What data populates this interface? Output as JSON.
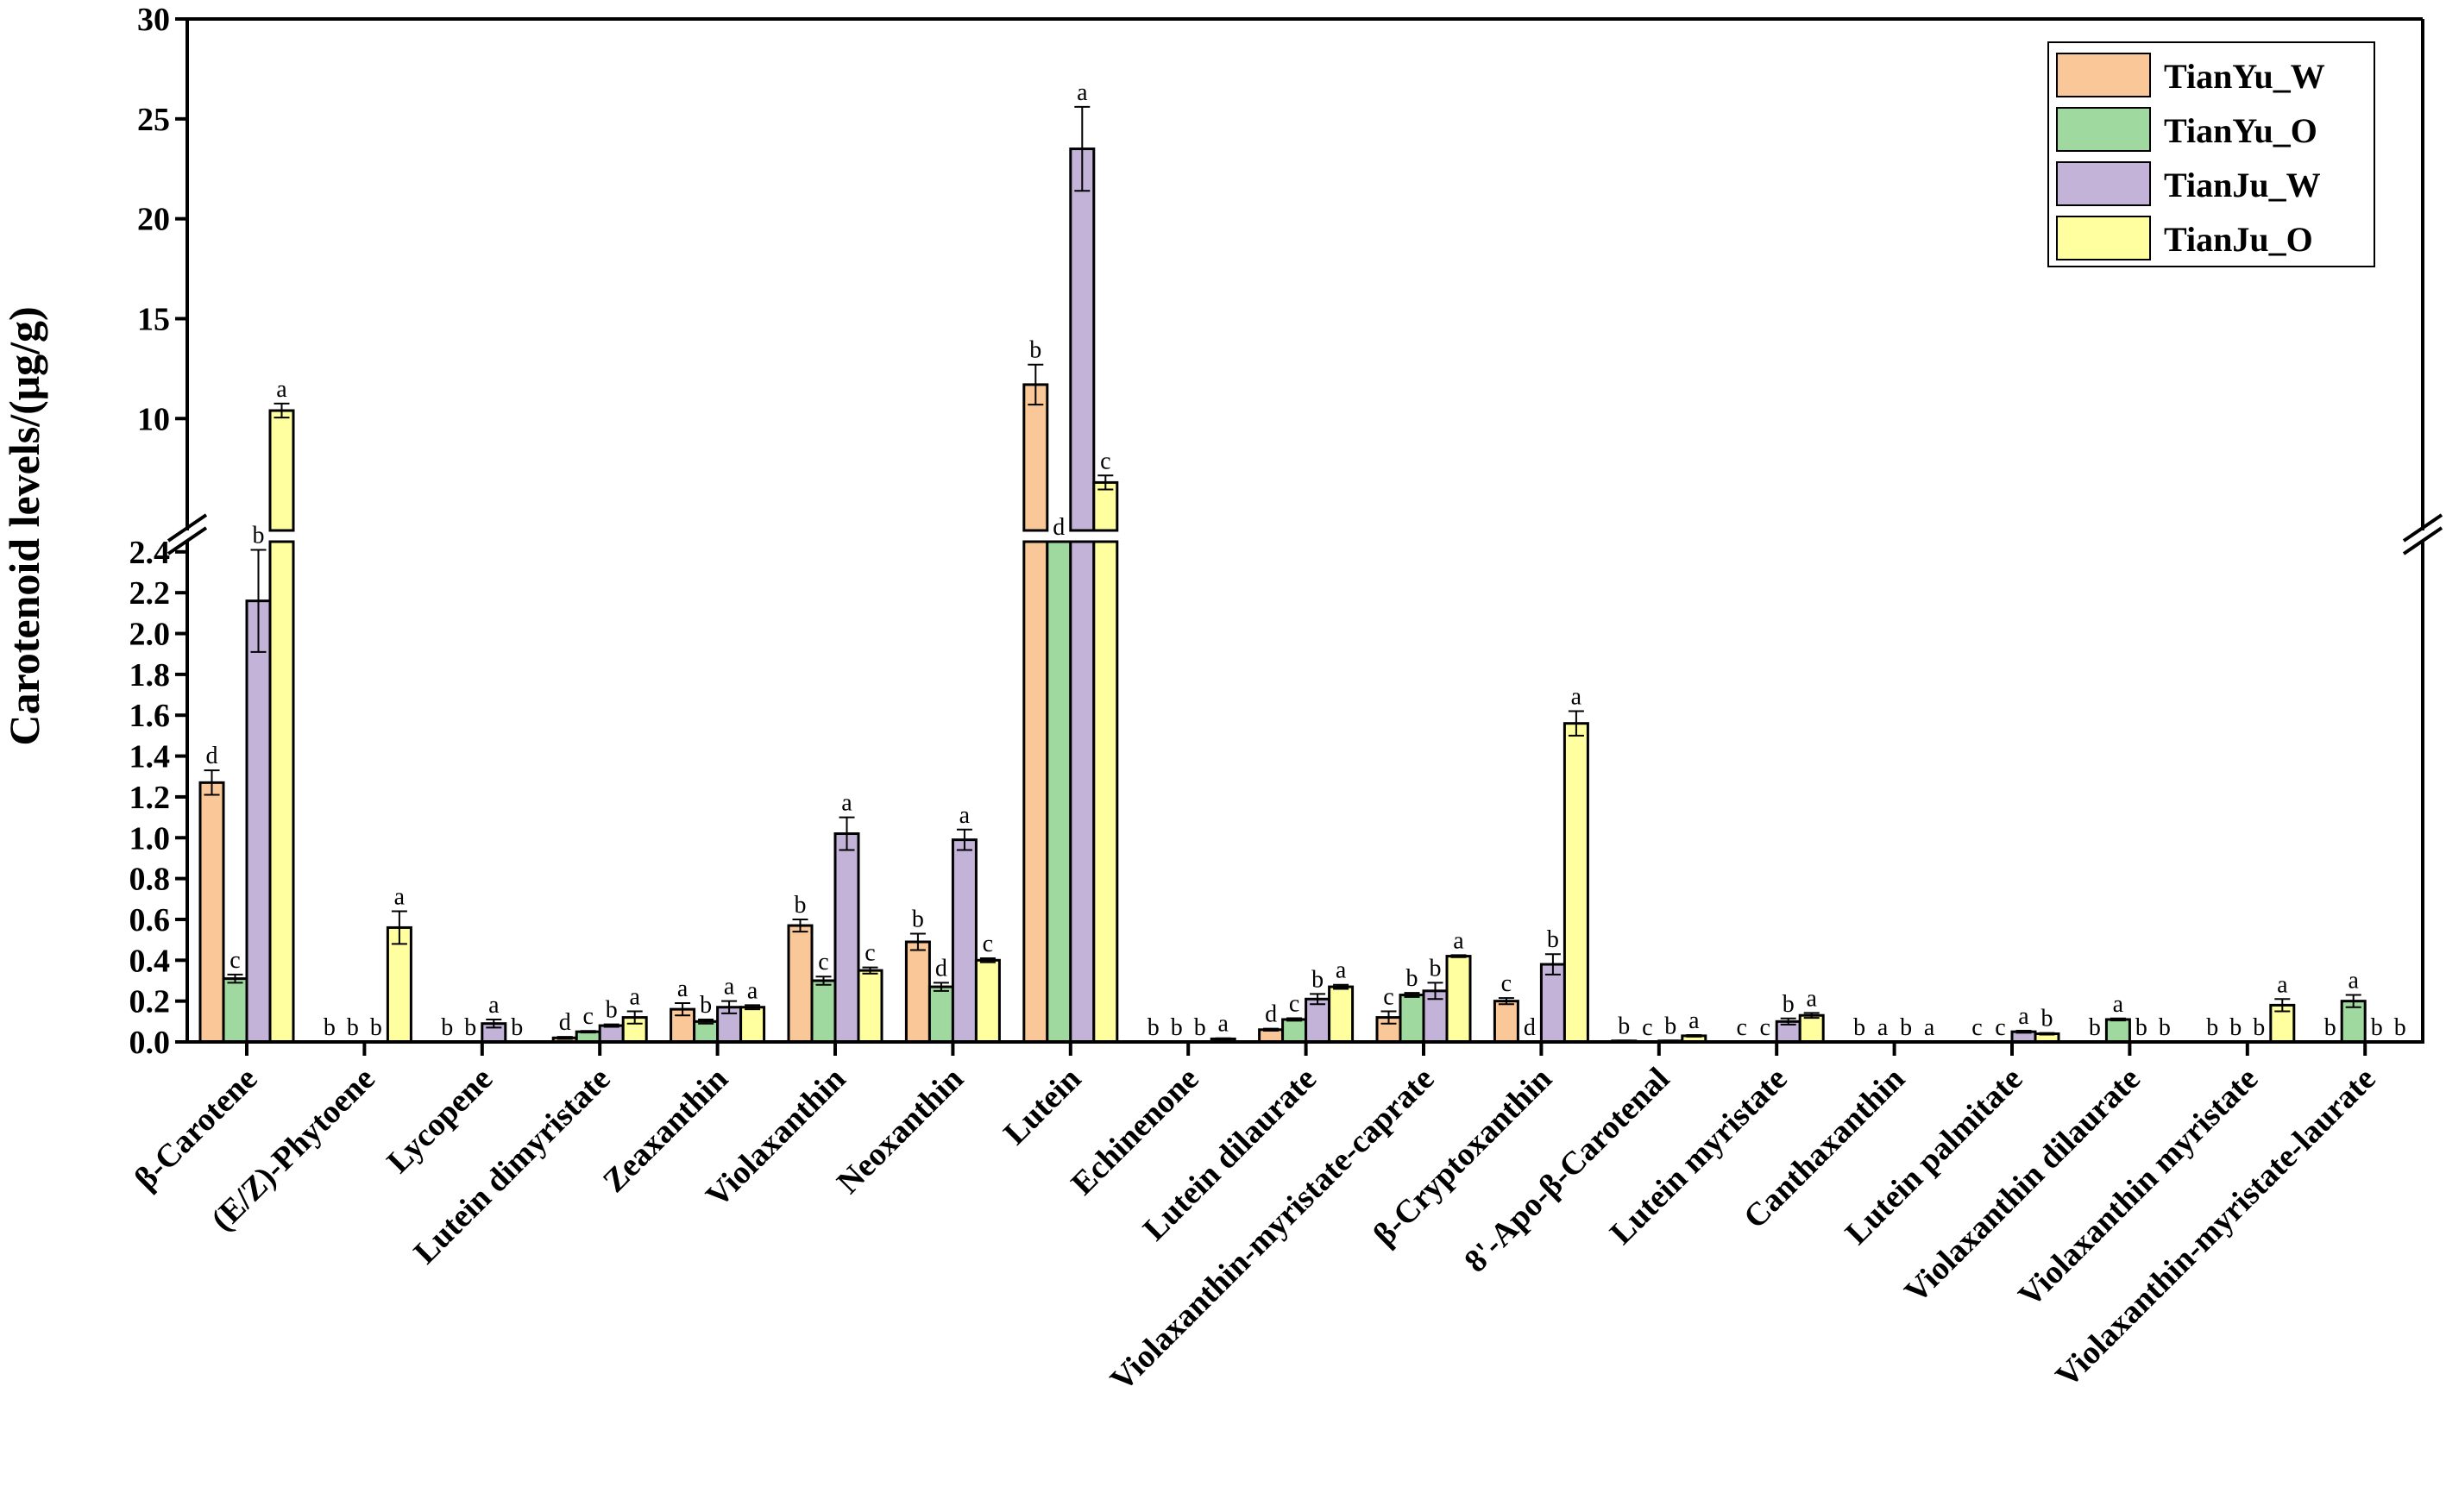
{
  "chart_data": {
    "type": "bar",
    "title": "",
    "xlabel": "",
    "ylabel": "Carotenoid levels/(μg/g)",
    "y_axis_break": {
      "lower_range": [
        0,
        2.45
      ],
      "upper_range": [
        4.4,
        30
      ]
    },
    "lower_ticks": [
      "0.0",
      "0.2",
      "0.4",
      "0.6",
      "0.8",
      "1.0",
      "1.2",
      "1.4",
      "1.6",
      "1.8",
      "2.0",
      "2.2",
      "2.4"
    ],
    "upper_ticks": [
      "10",
      "15",
      "20",
      "25",
      "30"
    ],
    "legend_position": "top-right",
    "categories": [
      "β-Carotene",
      "(E/Z)-Phytoene",
      "Lycopene",
      "Lutein dimyristate",
      "Zeaxanthin",
      "Violaxanthin",
      "Neoxanthin",
      "Lutein",
      "Echinenone",
      "Lutein dilaurate",
      "Violaxanthin-myristate-caprate",
      "β-Cryptoxanthin",
      "8'-Apo-β-Carotenal",
      "Lutein myristate",
      "Canthaxanthin",
      "Lutein palmitate",
      "Violaxanthin dilaurate",
      "Violaxanthin myristate",
      "Violaxanthin-myristate-laurate"
    ],
    "series": [
      {
        "name": "TianYu_W",
        "color": "#FAC898",
        "values": [
          1.27,
          0,
          0,
          0.02,
          0.16,
          0.57,
          0.49,
          11.7,
          0,
          0.06,
          0.12,
          0.2,
          0.005,
          0,
          0,
          0,
          0,
          0,
          0
        ],
        "errors": [
          0.06,
          0,
          0,
          0.005,
          0.03,
          0.03,
          0.04,
          1.0,
          0,
          0.005,
          0.03,
          0.015,
          0.002,
          0,
          0,
          0,
          0,
          0,
          0
        ],
        "letters": [
          "d",
          "b",
          "b",
          "d",
          "a",
          "b",
          "b",
          "b",
          "b",
          "d",
          "c",
          "c",
          "b",
          "c",
          "b",
          "c",
          "b",
          "b",
          "b"
        ]
      },
      {
        "name": "TianYu_O",
        "color": "#9FD99F",
        "values": [
          0.31,
          0,
          0,
          0.05,
          0.1,
          0.3,
          0.27,
          2.5,
          0,
          0.11,
          0.23,
          0,
          0,
          0,
          0,
          0,
          0.11,
          0,
          0.2
        ],
        "errors": [
          0.02,
          0,
          0,
          0.004,
          0.01,
          0.02,
          0.02,
          0,
          0,
          0.006,
          0.01,
          0,
          0,
          0,
          0,
          0,
          0.005,
          0,
          0.03
        ],
        "letters": [
          "c",
          "b",
          "b",
          "c",
          "b",
          "c",
          "d",
          "d",
          "b",
          "c",
          "b",
          "d",
          "c",
          "c",
          "a",
          "c",
          "a",
          "b",
          "a"
        ]
      },
      {
        "name": "TianJu_W",
        "color": "#C3B3D8",
        "values": [
          2.16,
          0,
          0.09,
          0.08,
          0.17,
          1.02,
          0.99,
          23.5,
          0,
          0.21,
          0.25,
          0.38,
          0.005,
          0.1,
          0,
          0.05,
          0,
          0,
          0
        ],
        "errors": [
          0.25,
          0,
          0.02,
          0.006,
          0.03,
          0.08,
          0.05,
          2.1,
          0,
          0.025,
          0.04,
          0.05,
          0.002,
          0.015,
          0,
          0.005,
          0,
          0,
          0
        ],
        "letters": [
          "b",
          "b",
          "a",
          "b",
          "a",
          "a",
          "a",
          "a",
          "b",
          "b",
          "b",
          "b",
          "b",
          "b",
          "b",
          "a",
          "b",
          "b",
          "b"
        ]
      },
      {
        "name": "TianJu_O",
        "color": "#FFFF9F",
        "values": [
          10.4,
          0.56,
          0,
          0.12,
          0.17,
          0.35,
          0.4,
          6.8,
          0.015,
          0.27,
          0.42,
          1.56,
          0.03,
          0.13,
          0,
          0.04,
          0,
          0.18,
          0
        ],
        "errors": [
          0.35,
          0.08,
          0,
          0.03,
          0.01,
          0.015,
          0.01,
          0.35,
          0.003,
          0.01,
          0.005,
          0.06,
          0.004,
          0.012,
          0,
          0.004,
          0,
          0.03,
          0
        ],
        "letters": [
          "a",
          "a",
          "b",
          "a",
          "a",
          "c",
          "c",
          "c",
          "a",
          "a",
          "a",
          "a",
          "a",
          "a",
          "a",
          "b",
          "b",
          "a",
          "b"
        ]
      }
    ]
  }
}
